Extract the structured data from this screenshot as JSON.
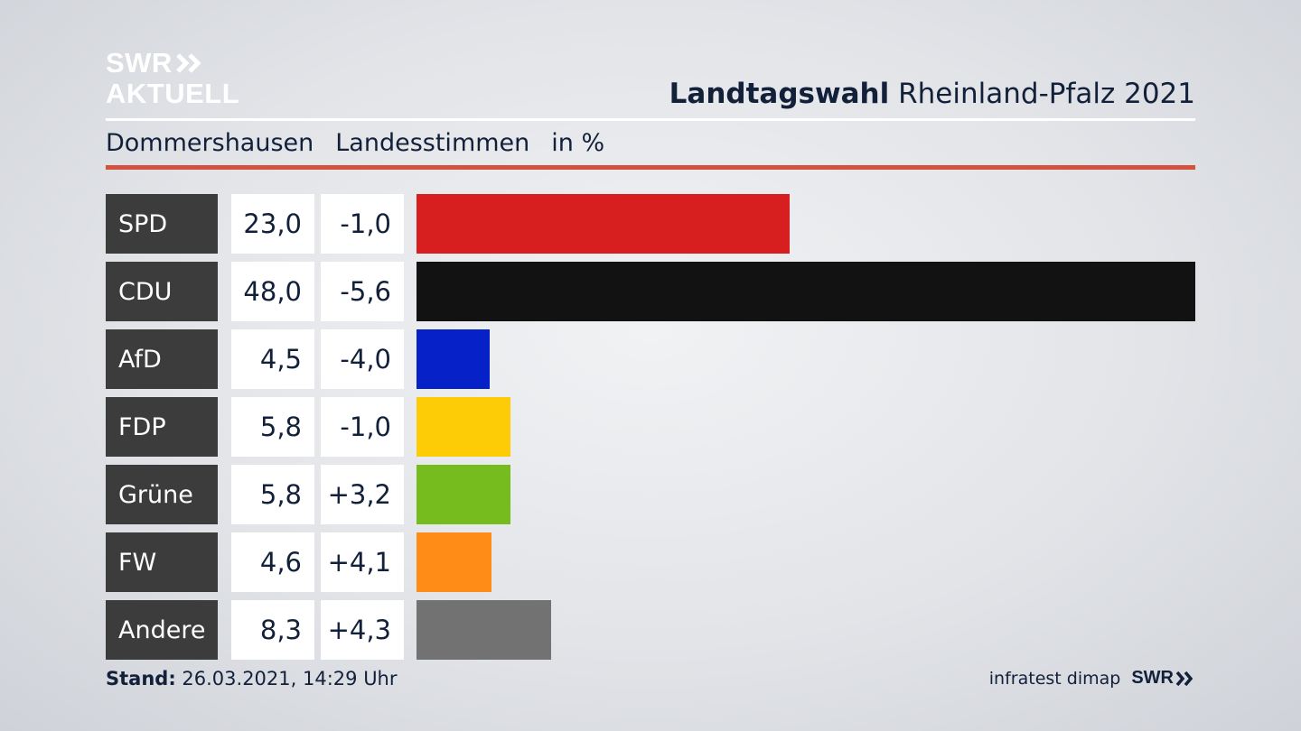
{
  "logo": {
    "line1": "SWR",
    "line2": "AKTUELL"
  },
  "header": {
    "title_bold": "Landtagswahl",
    "title_rest": "Rheinland-Pfalz 2021"
  },
  "subheader": {
    "place": "Dommershausen",
    "metric": "Landesstimmen",
    "unit": "in %"
  },
  "footer": {
    "stand_label": "Stand:",
    "stand_value": "26.03.2021, 14:29 Uhr",
    "source": "infratest dimap",
    "brand": "SWR"
  },
  "colors": {
    "accent_rule": "#d4513f",
    "party_label_bg": "#3c3c3c"
  },
  "chart_data": {
    "type": "bar",
    "orientation": "horizontal",
    "categories": [
      "SPD",
      "CDU",
      "AfD",
      "FDP",
      "Grüne",
      "FW",
      "Andere"
    ],
    "values": [
      23.0,
      48.0,
      4.5,
      5.8,
      5.8,
      4.6,
      8.3
    ],
    "value_labels": [
      "23,0",
      "48,0",
      "4,5",
      "5,8",
      "5,8",
      "4,6",
      "8,3"
    ],
    "change_labels": [
      "-1,0",
      "-5,6",
      "-4,0",
      "-1,0",
      "+3,2",
      "+4,1",
      "+4,3"
    ],
    "changes": [
      -1.0,
      -5.6,
      -4.0,
      -1.0,
      3.2,
      4.1,
      4.3
    ],
    "bar_colors": [
      "#d71f1f",
      "#121212",
      "#0621c8",
      "#fecb07",
      "#77bc1f",
      "#fe8c17",
      "#727273"
    ],
    "xlim": [
      0,
      48.0
    ]
  }
}
